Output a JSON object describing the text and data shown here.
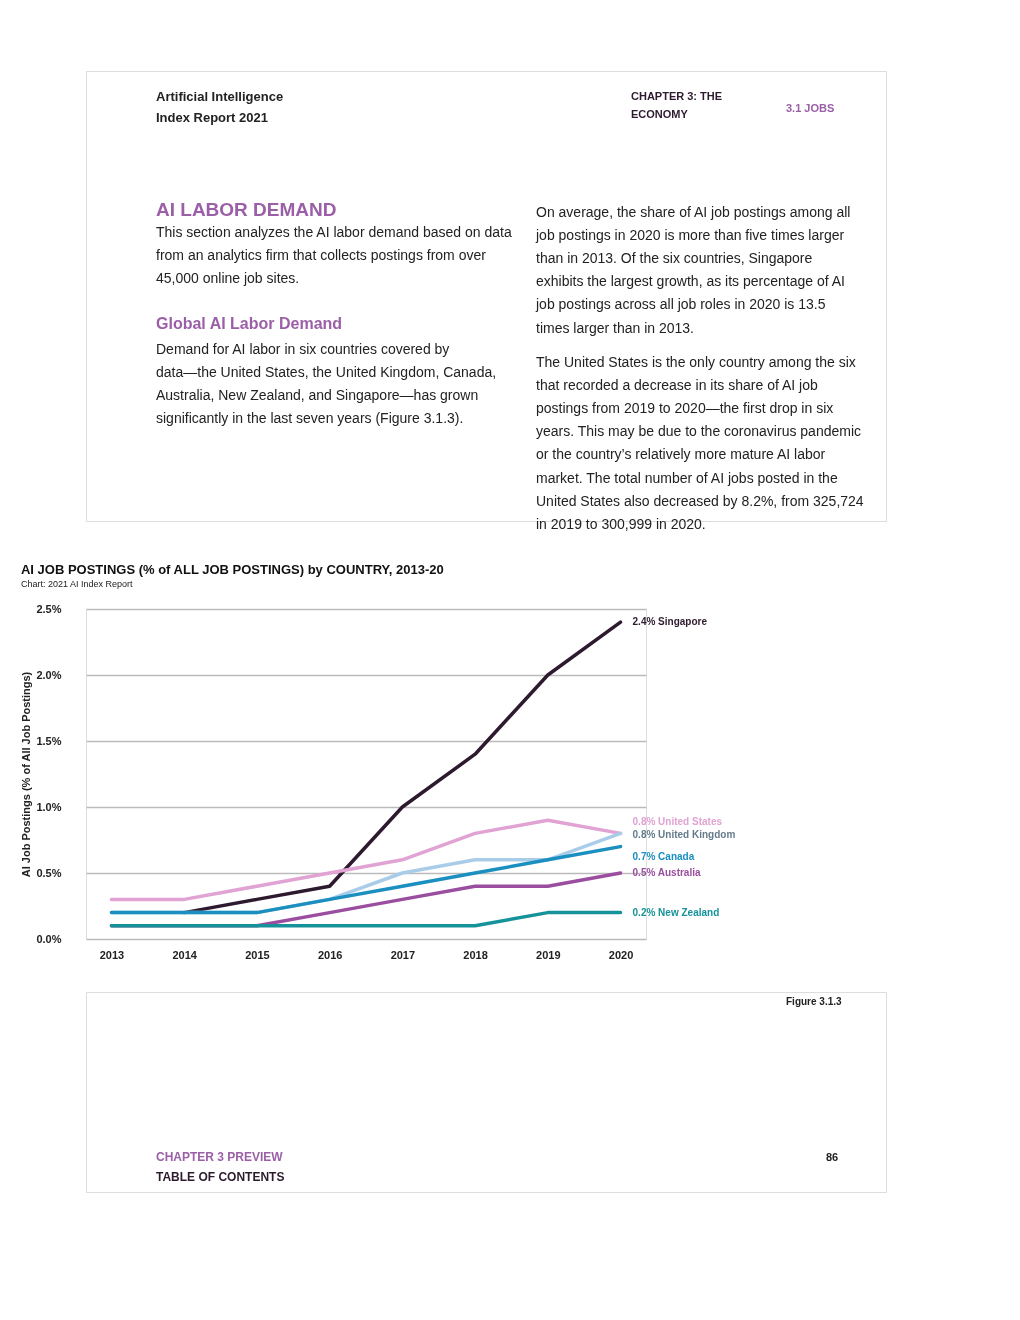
{
  "chart_data": {
    "type": "line",
    "title": "AI JOB POSTINGS (% of ALL JOB POSTINGS) by COUNTRY, 2013-20",
    "subtitle": "Chart: 2021 AI Index Report",
    "ylabel": "AI Job Postings (% of All Job Postings)",
    "categories": [
      "2013",
      "2014",
      "2015",
      "2016",
      "2017",
      "2018",
      "2019",
      "2020"
    ],
    "ylim": [
      0,
      2.5
    ],
    "yticks": [
      {
        "value": 0,
        "label": "0.0%"
      },
      {
        "value": 0.5,
        "label": "0.5%"
      },
      {
        "value": 1,
        "label": "1.0%"
      },
      {
        "value": 1.5,
        "label": "1.5%"
      },
      {
        "value": 2,
        "label": "2.0%"
      },
      {
        "value": 2.5,
        "label": "2.5%"
      }
    ],
    "grid": "y",
    "legend": false,
    "marker": "none",
    "line_style": "solid",
    "series": [
      {
        "name": "Singapore",
        "color": "#2d1a2e",
        "values": [
          null,
          0.2,
          0.3,
          0.4,
          1.0,
          1.4,
          2.0,
          2.4
        ],
        "value_labels": [
          null,
          null,
          null,
          null,
          null,
          null,
          null,
          "2.4%"
        ]
      },
      {
        "name": "United States",
        "color": "#e0a3d3",
        "values": [
          0.3,
          0.3,
          0.4,
          0.5,
          0.6,
          0.8,
          0.9,
          0.8
        ],
        "value_labels": [
          null,
          null,
          null,
          null,
          null,
          null,
          null,
          "0.8%"
        ]
      },
      {
        "name": "United Kingdom",
        "color": "#a9cde8",
        "values": [
          0.2,
          0.2,
          0.2,
          0.3,
          0.5,
          0.6,
          0.6,
          0.8
        ],
        "value_labels": [
          null,
          null,
          null,
          null,
          null,
          null,
          null,
          "0.8%"
        ]
      },
      {
        "name": "Canada",
        "color": "#1a8fc0",
        "values": [
          0.2,
          0.2,
          0.2,
          0.3,
          0.4,
          0.5,
          0.6,
          0.7
        ],
        "value_labels": [
          null,
          null,
          null,
          null,
          null,
          null,
          null,
          "0.7%"
        ]
      },
      {
        "name": "Australia",
        "color": "#9b4ea0",
        "values": [
          0.1,
          0.1,
          0.1,
          0.2,
          0.3,
          0.4,
          0.4,
          0.5
        ],
        "value_labels": [
          null,
          null,
          null,
          null,
          null,
          null,
          null,
          "0.5%"
        ]
      },
      {
        "name": "New Zealand",
        "color": "#16929a",
        "values": [
          0.1,
          0.1,
          0.1,
          0.1,
          0.1,
          0.1,
          0.2,
          0.2
        ],
        "value_labels": [
          null,
          null,
          null,
          null,
          null,
          null,
          null,
          "0.2%"
        ]
      }
    ],
    "annotations": [
      "Artificial Intelligence Index Report 2021",
      "CHAPTER 3: THE ECONOMY",
      "3.1 JOBS",
      "AI LABOR DEMAND",
      "This section analyzes the AI labor demand based on data from an analytics firm that collects postings from over 45,000 online job sites.",
      "Global AI Labor Demand",
      "Demand for AI labor in six countries covered by data—the United States, the United Kingdom, Canada, Australia, New Zealand, and Singapore—has grown significantly in the last seven years (Figure 3.1.3).",
      "On average, the share of AI job postings among all job postings in 2020 is more than five times larger than in 2013. Of the six countries, Singapore exhibits the largest growth, as its percentage of AI job postings across all job roles in 2020 is 13.5 times larger than in 2013.",
      "The United States is the only country among the six that recorded a decrease in its share of AI job postings from 2019 to 2020—the first drop in six years. This may be due to the coronavirus pandemic or the country’s relatively more mature AI labor market. The total number of AI jobs posted in the United States also decreased by 8.2%, from 325,724 in 2019 to 300,999 in 2020.",
      "Figure 3.1.3",
      "CHAPTER 3 PREVIEW",
      "TABLE OF CONTENTS",
      "86"
    ]
  }
}
